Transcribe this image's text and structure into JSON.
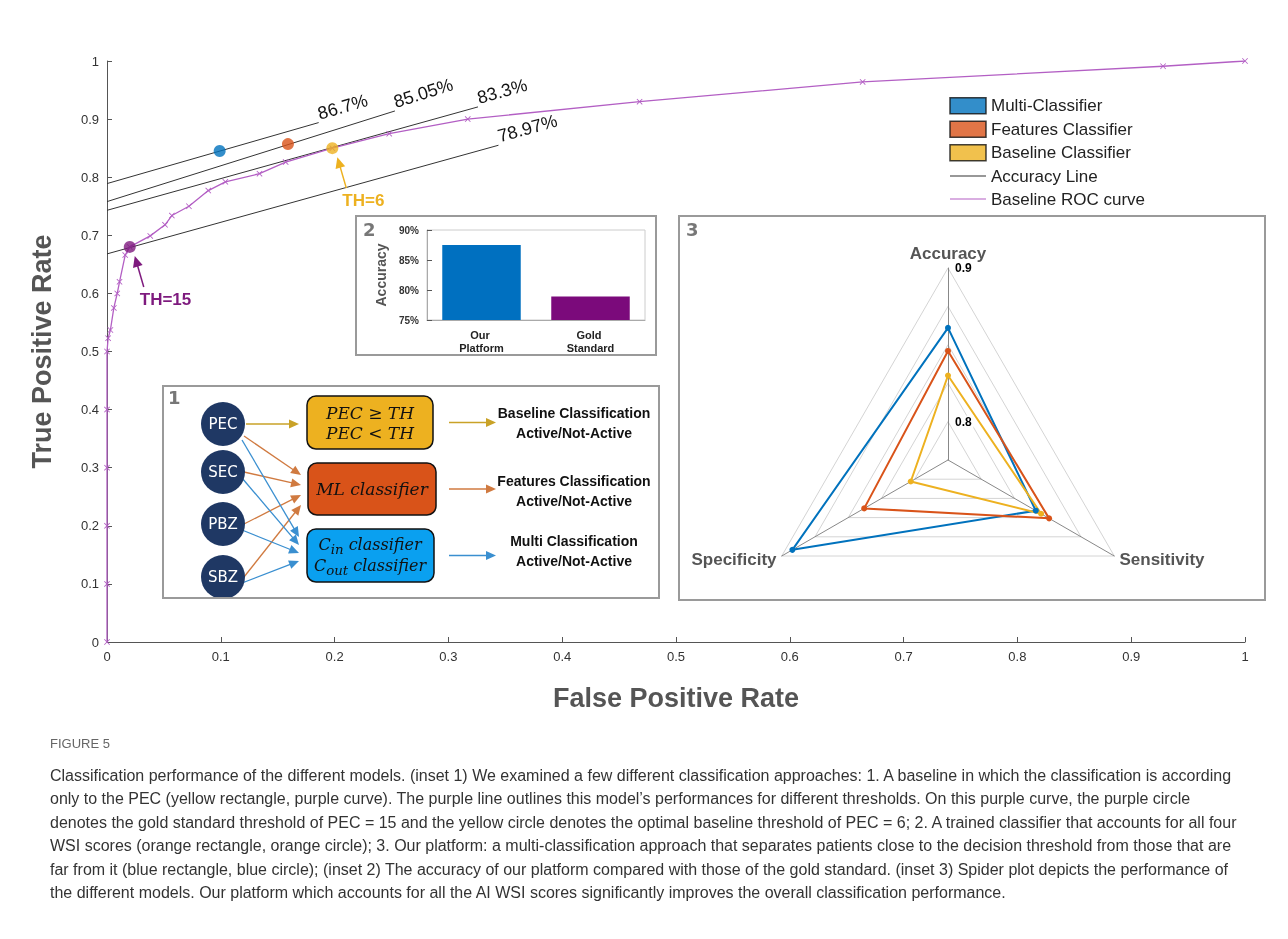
{
  "chart_data": [
    {
      "type": "line",
      "xlabel": "False Positive Rate",
      "ylabel": "True Positive Rate",
      "xlim": [
        0,
        1
      ],
      "ylim": [
        0,
        1
      ],
      "xticks": [
        0,
        0.1,
        0.2,
        0.3,
        0.4,
        0.5,
        0.6,
        0.7,
        0.8,
        0.9,
        1
      ],
      "yticks": [
        0,
        0.1,
        0.2,
        0.3,
        0.4,
        0.5,
        0.6,
        0.7,
        0.8,
        0.9,
        1
      ],
      "legend": "top right",
      "series": [
        {
          "type": "scatter",
          "name": "Multi-Classifier",
          "color": "#0072bd",
          "marker": "circle",
          "x": [
            0.099
          ],
          "values": [
            0.845
          ]
        },
        {
          "type": "scatter",
          "name": "Features Classifier",
          "color": "#d95319",
          "marker": "circle",
          "x": [
            0.159
          ],
          "values": [
            0.857
          ]
        },
        {
          "type": "scatter",
          "name": "Baseline Classifier",
          "color": "#edb120",
          "marker": "circle",
          "x": [
            0.198
          ],
          "values": [
            0.85
          ]
        },
        {
          "type": "line",
          "name": "Accuracy Line",
          "color": "#333333",
          "marker": "none",
          "x": [
            0,
            0.186
          ],
          "values": [
            0.789,
            0.894
          ]
        },
        {
          "type": "line",
          "color": "#333333",
          "marker": "none",
          "x": [
            0,
            0.253
          ],
          "values": [
            0.758,
            0.914
          ]
        },
        {
          "type": "line",
          "color": "#333333",
          "marker": "none",
          "x": [
            0,
            0.326
          ],
          "values": [
            0.743,
            0.921
          ]
        },
        {
          "type": "line",
          "color": "#333333",
          "marker": "none",
          "x": [
            0,
            0.344
          ],
          "values": [
            0.668,
            0.855
          ]
        },
        {
          "type": "line",
          "name": "Baseline ROC curve",
          "color": "#b35fc4",
          "marker": "cross",
          "x": [
            0,
            0,
            0,
            0,
            0,
            0,
            0.001,
            0.003,
            0.006,
            0.009,
            0.011,
            0.016,
            0.02,
            0.038,
            0.051,
            0.057,
            0.072,
            0.089,
            0.104,
            0.134,
            0.157,
            0.198,
            0.248,
            0.317,
            0.468,
            0.664,
            0.928,
            1
          ],
          "values": [
            0,
            0.1,
            0.2,
            0.3,
            0.4,
            0.5,
            0.523,
            0.537,
            0.575,
            0.6,
            0.62,
            0.666,
            0.68,
            0.699,
            0.718,
            0.734,
            0.75,
            0.777,
            0.792,
            0.806,
            0.826,
            0.85,
            0.875,
            0.9,
            0.93,
            0.964,
            0.991,
            1
          ]
        },
        {
          "type": "scatter",
          "color": "#7e1a7e",
          "marker": "circle",
          "x": [
            0.02
          ],
          "values": [
            0.68
          ]
        }
      ],
      "annotations": [
        {
          "text": "86.7%",
          "x": 0.186,
          "y": 0.894
        },
        {
          "text": "85.05%",
          "x": 0.253,
          "y": 0.914
        },
        {
          "text": "83.3%",
          "x": 0.326,
          "y": 0.921
        },
        {
          "text": "78.97%",
          "x": 0.344,
          "y": 0.855
        },
        {
          "text": "TH=6",
          "x": 0.198,
          "y": 0.85
        },
        {
          "text": "TH=15",
          "x": 0.02,
          "y": 0.68
        },
        "FIGURE 5",
        "Classification performance of the different models. (inset 1) We examined a few different classification approaches: 1. A baseline in which the classification is according only to the PEC (yellow rectangle, purple curve). The purple line outlines this model’s performances for different thresholds. On this purple curve, the purple circle denotes the gold standard threshold of PEC = 15 and the yellow circle denotes the optimal baseline threshold of PEC = 6; 2. A trained classifier that accounts for all four WSI scores (orange rectangle, orange circle); 3. Our platform: a multi-classification approach that separates patients close to the decision threshold from those that are far from it (blue rectangle, blue circle); (inset 2) The accuracy of our platform compared with those of the gold standard. (inset 3) Spider plot depicts the performance of the different models. Our platform which accounts for all the AI WSI scores significantly improves the overall classification performance."
      ]
    },
    {
      "type": "bar",
      "categories": [
        "Our Platform",
        "Gold Standard"
      ],
      "values": [
        87.5,
        78.9
      ],
      "colors": [
        "#0070c0",
        "#7b0a7b"
      ],
      "ylabel": "Accuracy",
      "ylim": [
        75,
        90
      ],
      "yticks": [
        {
          "value": 75,
          "label": "75%"
        },
        {
          "value": 80,
          "label": "80%"
        },
        {
          "value": 85,
          "label": "85%"
        },
        {
          "value": 90,
          "label": "90%"
        }
      ],
      "annotations": [
        "2"
      ]
    },
    {
      "type": "radar",
      "categories": [
        "Accuracy",
        "Sensitivity",
        "Specificity"
      ],
      "ylim": [
        0.775,
        0.9
      ],
      "yticks": [
        0.8,
        0.9
      ],
      "marker": "circle",
      "series": [
        {
          "color": "#0072bd",
          "values": [
            0.861,
            0.841,
            0.892
          ]
        },
        {
          "color": "#d95319",
          "values": [
            0.846,
            0.851,
            0.838
          ]
        },
        {
          "color": "#edb120",
          "values": [
            0.83,
            0.845,
            0.803
          ]
        }
      ],
      "annotations": [
        "3"
      ]
    },
    {
      "type": "other",
      "annotations": [
        "1",
        "PEC",
        "SEC",
        "PBZ",
        "SBZ",
        "PEC ≥ TH",
        "PEC < TH",
        "ML classifier",
        "C$_{in}$ classifier",
        "C$_{out}$ classifier",
        "Baseline Classification",
        "Active/Not-Active",
        "Features Classification",
        "Active/Not-Active",
        "Multi Classification",
        "Active/Not-Active"
      ]
    }
  ]
}
